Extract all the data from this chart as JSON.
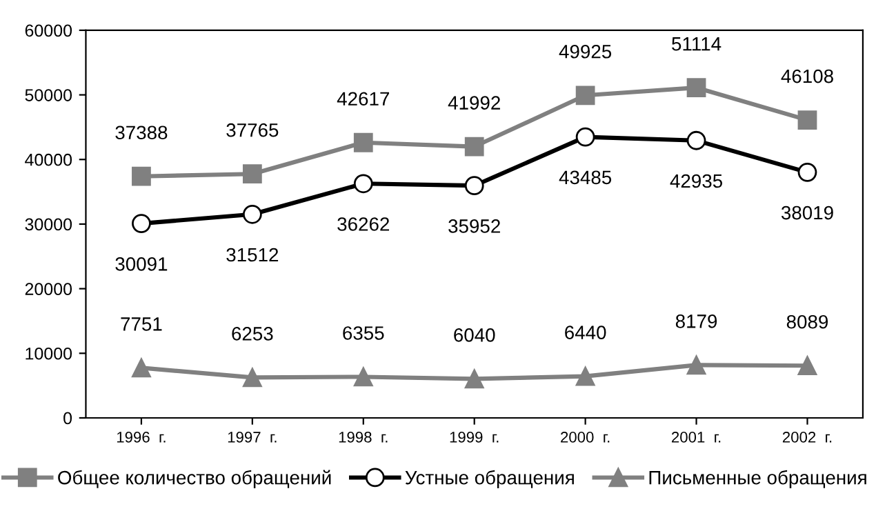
{
  "chart_data": {
    "type": "line",
    "categories": [
      "1996  г.",
      "1997  г.",
      "1998  г.",
      "1999  г.",
      "2000  г.",
      "2001  г.",
      "2002  г."
    ],
    "series": [
      {
        "name": "Общее количество обращений",
        "color": "#808080",
        "marker": "square",
        "values": [
          37388,
          37765,
          42617,
          41992,
          49925,
          51114,
          46108
        ]
      },
      {
        "name": "Устные обращения",
        "color": "#000000",
        "marker": "circle",
        "values": [
          30091,
          31512,
          36262,
          35952,
          43485,
          42935,
          38019
        ]
      },
      {
        "name": "Письменные обращения",
        "color": "#808080",
        "marker": "triangle",
        "values": [
          7751,
          6253,
          6355,
          6040,
          6440,
          8179,
          8089
        ]
      }
    ],
    "ylim": [
      0,
      60000
    ],
    "yticks": [
      0,
      10000,
      20000,
      30000,
      40000,
      50000,
      60000
    ],
    "grid": false,
    "legend": "bottom",
    "data_labels": true,
    "line_style": "solid"
  }
}
